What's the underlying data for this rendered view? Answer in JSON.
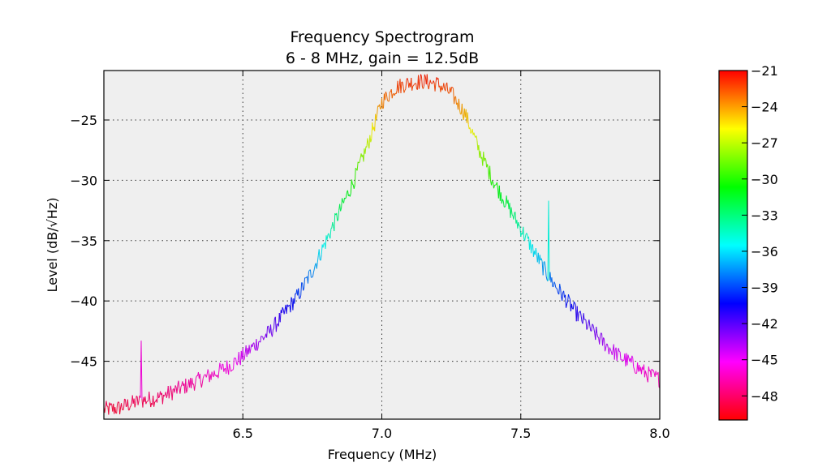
{
  "chart_data": {
    "type": "line",
    "title": "Frequency Spectrogram",
    "subtitle": "6 - 8 MHz, gain = 12.5dB",
    "xlabel": "Frequency (MHz)",
    "ylabel": "Level (dB/√Hz)",
    "xlim": [
      6.0,
      8.0
    ],
    "ylim": [
      -49.8,
      -20.9
    ],
    "x_ticks": [
      6.5,
      7.0,
      7.5,
      8.0
    ],
    "x_tick_labels": [
      "6.5",
      "7.0",
      "7.5",
      "8.0"
    ],
    "y_ticks": [
      -25,
      -30,
      -35,
      -40,
      -45
    ],
    "y_tick_labels": [
      "−25",
      "−30",
      "−35",
      "−40",
      "−45"
    ],
    "grid": true,
    "colorbar": {
      "range": [
        -50,
        -21
      ],
      "ticks": [
        -21,
        -24,
        -27,
        -30,
        -33,
        -36,
        -39,
        -42,
        -45,
        -48
      ],
      "tick_labels": [
        "−21",
        "−24",
        "−27",
        "−30",
        "−33",
        "−36",
        "−39",
        "−42",
        "−45",
        "−48"
      ],
      "colormap": "hsv"
    },
    "series": [
      {
        "x": [
          6.0,
          6.05,
          6.1,
          6.15,
          6.2,
          6.25,
          6.3,
          6.35,
          6.4,
          6.45,
          6.5,
          6.55,
          6.6,
          6.65,
          6.7,
          6.75,
          6.8,
          6.85,
          6.9,
          6.95,
          7.0,
          7.05,
          7.1,
          7.15,
          7.2,
          7.25,
          7.3,
          7.35,
          7.4,
          7.45,
          7.5,
          7.55,
          7.6,
          7.65,
          7.7,
          7.75,
          7.8,
          7.85,
          7.9,
          7.95,
          8.0
        ],
        "values": [
          -49.0,
          -48.9,
          -48.5,
          -48.2,
          -48.0,
          -47.5,
          -47.0,
          -46.5,
          -46.0,
          -45.4,
          -44.6,
          -43.5,
          -42.5,
          -41.0,
          -39.5,
          -37.5,
          -35.0,
          -32.5,
          -30.0,
          -27.0,
          -23.5,
          -22.3,
          -21.9,
          -21.8,
          -22.0,
          -22.8,
          -24.5,
          -27.5,
          -30.0,
          -32.0,
          -34.0,
          -36.0,
          -38.0,
          -39.5,
          -41.0,
          -42.3,
          -43.5,
          -44.5,
          -45.2,
          -46.0,
          -46.5
        ],
        "spikes": [
          {
            "x": 6.135,
            "value": -43.3
          },
          {
            "x": 7.6,
            "value": -31.7
          }
        ]
      }
    ]
  }
}
